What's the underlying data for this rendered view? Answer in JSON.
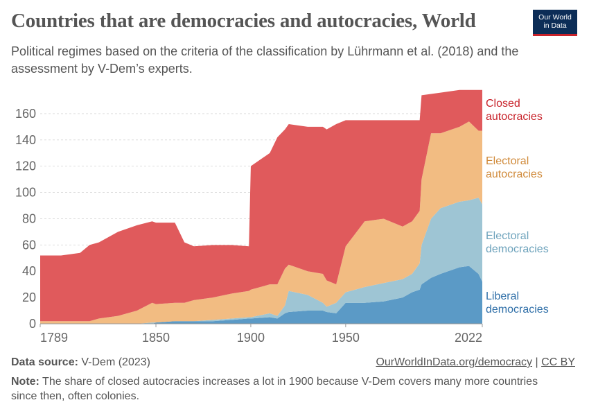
{
  "chart_data": {
    "type": "stacked_area",
    "title": "Countries that are democracies and autocracies, World",
    "subtitle": "Political regimes based on the criteria of the classification by Lührmann et al. (2018) and the assessment by V-Dem’s experts.",
    "logo": "Our World in Data",
    "source_label": "Data source:",
    "source": "V-Dem (2023)",
    "url": "OurWorldInData.org/democracy",
    "separator": "|",
    "license": "CC BY",
    "note_label": "Note:",
    "note": "The share of closed autocracies increases a lot in 1900 because V-Dem covers many more countries since then, often colonies.",
    "x": [
      1789,
      1800,
      1810,
      1815,
      1820,
      1830,
      1840,
      1848,
      1850,
      1860,
      1865,
      1870,
      1880,
      1890,
      1899,
      1900,
      1910,
      1914,
      1918,
      1920,
      1930,
      1938,
      1940,
      1945,
      1950,
      1960,
      1970,
      1980,
      1985,
      1989,
      1990,
      1995,
      2000,
      2010,
      2015,
      2020,
      2022
    ],
    "series": [
      {
        "name": "Liberal democracies",
        "color": "#5b9ac6",
        "label_color": "#2f6fa8",
        "values": [
          0,
          0,
          0,
          0,
          0,
          0,
          0,
          0,
          1,
          2,
          2,
          2,
          2,
          3,
          4,
          4,
          5,
          4,
          8,
          9,
          10,
          10,
          9,
          8,
          16,
          16,
          17,
          20,
          24,
          26,
          30,
          35,
          38,
          43,
          44,
          38,
          32
        ]
      },
      {
        "name": "Electoral democracies",
        "color": "#9ec5d4",
        "label_color": "#6ea3bc",
        "values": [
          0,
          0,
          0,
          0,
          0,
          0,
          0,
          1,
          0,
          0,
          0,
          0,
          1,
          1,
          1,
          1,
          3,
          2,
          6,
          16,
          12,
          6,
          4,
          8,
          8,
          12,
          14,
          14,
          14,
          20,
          30,
          45,
          50,
          50,
          50,
          58,
          59
        ]
      },
      {
        "name": "Electoral autocracies",
        "color": "#f2bc82",
        "label_color": "#d08a3a",
        "values": [
          2,
          2,
          2,
          2,
          4,
          6,
          10,
          15,
          14,
          14,
          14,
          16,
          17,
          19,
          20,
          21,
          22,
          24,
          28,
          20,
          18,
          22,
          20,
          14,
          35,
          50,
          49,
          40,
          40,
          40,
          50,
          65,
          57,
          57,
          60,
          51,
          56
        ]
      },
      {
        "name": "Closed autocracies",
        "color": "#e05a5c",
        "label_color": "#c8222a",
        "values": [
          50,
          50,
          52,
          58,
          58,
          64,
          65,
          62,
          62,
          61,
          46,
          41,
          40,
          37,
          34,
          94,
          100,
          112,
          106,
          107,
          110,
          112,
          115,
          122,
          96,
          77,
          75,
          81,
          77,
          69,
          64,
          30,
          31,
          28,
          24,
          31,
          31
        ]
      }
    ],
    "xlim": [
      1789,
      2022
    ],
    "xticks": [
      1789,
      1850,
      1900,
      1950,
      2022
    ],
    "ylim": [
      0,
      180
    ],
    "yticks": [
      0,
      20,
      40,
      60,
      80,
      100,
      120,
      140,
      160
    ],
    "grid": true
  }
}
